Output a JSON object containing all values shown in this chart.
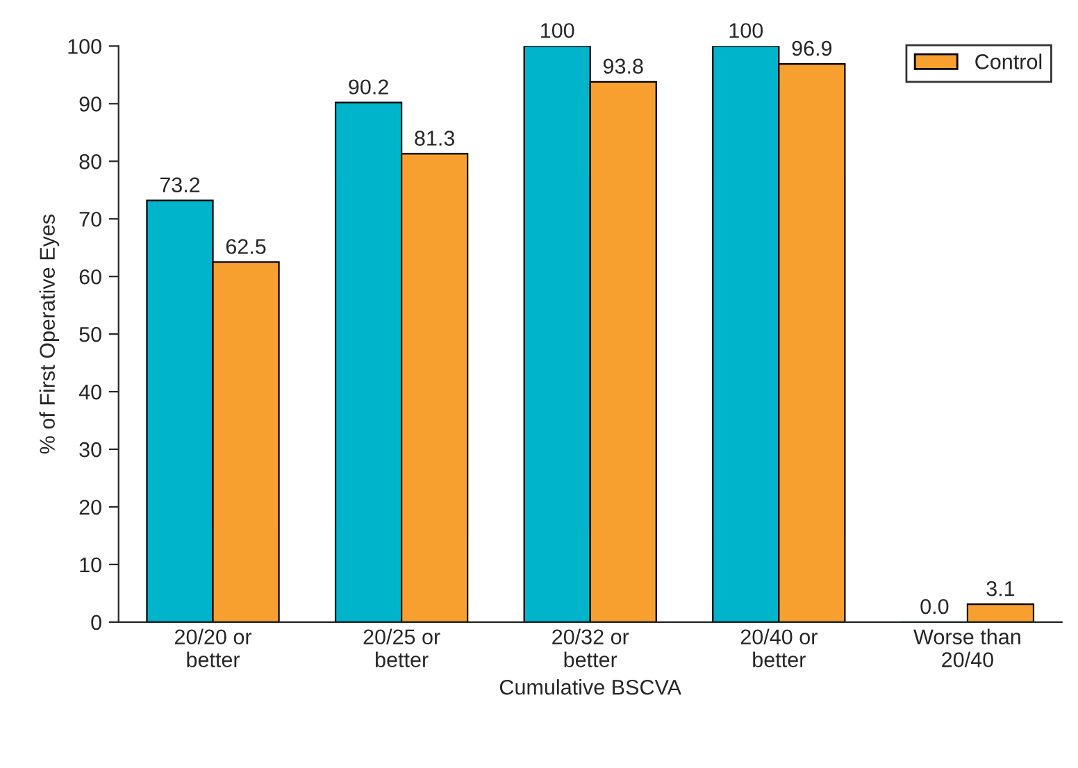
{
  "chart_data": {
    "type": "bar",
    "categories": [
      "20/20 or\nbetter",
      "20/25 or\nbetter",
      "20/32 or\nbetter",
      "20/40 or\nbetter",
      "Worse than\n20/40"
    ],
    "series": [
      {
        "color": "#00b4cc",
        "values": [
          73.2,
          90.2,
          100,
          100,
          0.0
        ],
        "value_labels": [
          "73.2",
          "90.2",
          "100",
          "100",
          "0.0"
        ]
      },
      {
        "name": "Control",
        "color": "#f7a030",
        "values": [
          62.5,
          81.3,
          93.8,
          96.9,
          3.1
        ],
        "value_labels": [
          "62.5",
          "81.3",
          "93.8",
          "96.9",
          "3.1"
        ]
      }
    ],
    "xlabel": "Cumulative BSCVA",
    "ylabel": "% of First Operative Eyes",
    "ylim": [
      0,
      100
    ],
    "yticks": [
      0,
      10,
      20,
      30,
      40,
      50,
      60,
      70,
      80,
      90,
      100
    ],
    "grid": false,
    "legend": "top right"
  }
}
